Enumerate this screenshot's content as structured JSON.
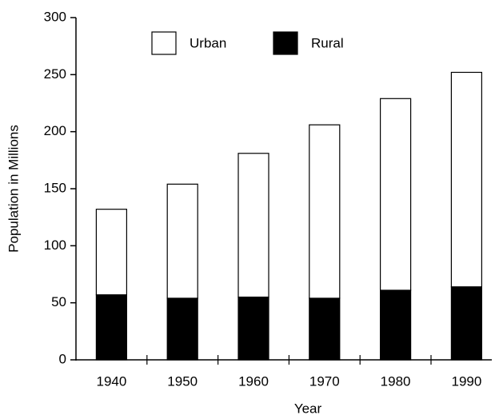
{
  "chart_data": {
    "type": "stacked_bar",
    "xlabel": "Year",
    "ylabel": "Population in Millions",
    "categories": [
      "1940",
      "1950",
      "1960",
      "1970",
      "1980",
      "1990"
    ],
    "series": [
      {
        "name": "Rural",
        "color": "#000000",
        "values": [
          57,
          54,
          55,
          54,
          61,
          64
        ]
      },
      {
        "name": "Urban",
        "color": "#ffffff",
        "values": [
          75,
          100,
          126,
          152,
          168,
          188
        ]
      }
    ],
    "legend_order": [
      "Urban",
      "Rural"
    ],
    "ylim": [
      0,
      300
    ],
    "yticks": [
      0,
      50,
      100,
      150,
      200,
      250,
      300
    ],
    "legend": "top"
  }
}
